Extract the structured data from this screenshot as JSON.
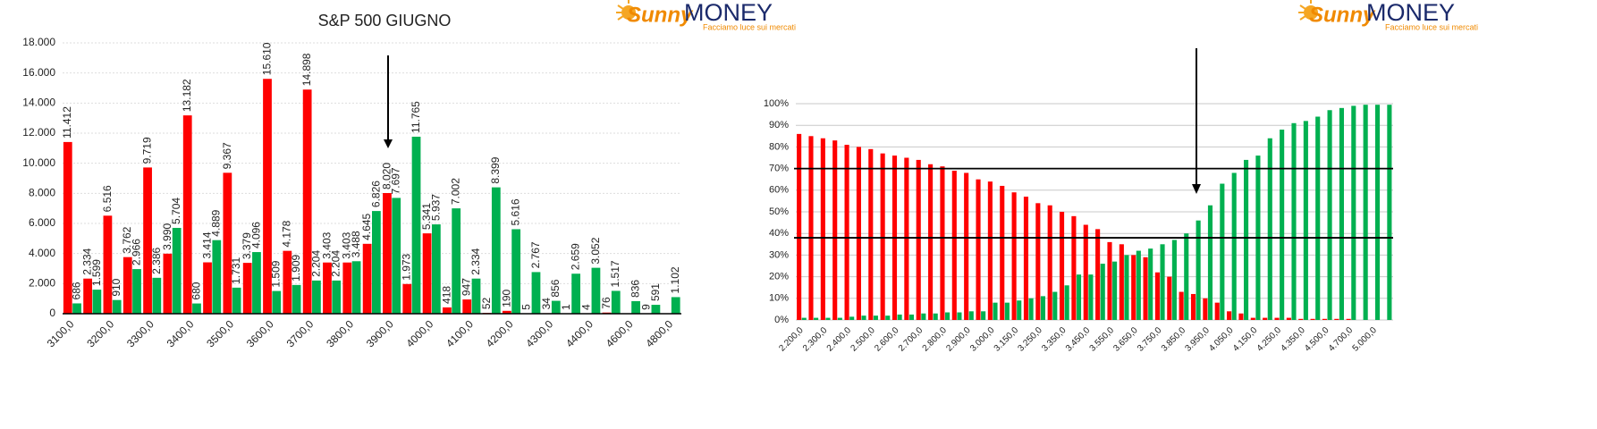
{
  "chart_data": [
    {
      "type": "bar",
      "title": "S&P 500 GIUGNO",
      "categories": [
        "3100,0",
        null,
        "3200,0",
        null,
        "3300,0",
        null,
        "3400,0",
        null,
        "3500,0",
        null,
        "3600,0",
        null,
        "3700,0",
        null,
        "3800,0",
        null,
        "3900,0",
        null,
        "4000,0",
        null,
        "4100,0",
        null,
        "4200,0",
        null,
        "4300,0",
        null,
        "4400,0",
        null,
        "4600,0",
        null,
        "4800,0"
      ],
      "series": [
        {
          "color": "#ff0000",
          "values": [
            11412,
            2334,
            6516,
            3762,
            9719,
            3990,
            13182,
            3414,
            9367,
            3379,
            15610,
            4178,
            14898,
            3403,
            3403,
            4645,
            8020,
            1973,
            5341,
            418,
            947,
            52,
            190,
            5,
            34,
            1,
            4,
            76,
            null,
            9,
            null
          ],
          "value_labels": [
            "11.412",
            "2.334",
            "6.516",
            "3.762",
            "9.719",
            "3.990",
            "13.182",
            "3.414",
            "9.367",
            "3.379",
            "15.610",
            "4.178",
            "14.898",
            "3.403",
            "3.403",
            "4.645",
            "8.020",
            "1.973",
            "5.341",
            "418",
            "947",
            "52",
            "190",
            "5",
            "34",
            "1",
            "4",
            "76",
            null,
            "9",
            null
          ]
        },
        {
          "color": "#00b050",
          "values": [
            686,
            1599,
            910,
            2966,
            2386,
            5704,
            680,
            4889,
            1731,
            4096,
            1509,
            1909,
            2204,
            2204,
            3488,
            6826,
            7697,
            11765,
            5937,
            7002,
            2334,
            8399,
            5616,
            2767,
            856,
            2659,
            3052,
            1517,
            836,
            591,
            1102
          ],
          "value_labels": [
            "686",
            "1.599",
            "910",
            "2.966",
            "2.386",
            "5.704",
            "680",
            "4.889",
            "1.731",
            "4.096",
            "1.509",
            "1.909",
            "2.204",
            "2.204",
            "3.488",
            "6.826",
            "7.697",
            "11.765",
            "5.937",
            "7.002",
            "2.334",
            "8.399",
            "5.616",
            "2.767",
            "856",
            "2.659",
            "3.052",
            "1.517",
            "836",
            "591",
            "1.102"
          ]
        }
      ],
      "ylim": [
        0,
        18000
      ],
      "yticks": [
        0,
        {
          "value": 2000,
          "label": "2.000"
        },
        {
          "value": 4000,
          "label": "4.000"
        },
        {
          "value": 6000,
          "label": "6.000"
        },
        {
          "value": 8000,
          "label": "8.000"
        },
        {
          "value": 10000,
          "label": "10.000"
        },
        {
          "value": 12000,
          "label": "12.000"
        },
        {
          "value": 14000,
          "label": "14.000"
        },
        {
          "value": 16000,
          "label": "16.000"
        },
        {
          "value": 18000,
          "label": "18.000"
        }
      ],
      "grid": true
    },
    {
      "type": "bar",
      "categories": [
        "2.200,0",
        null,
        "2.300,0",
        null,
        "2.400,0",
        null,
        "2.500,0",
        null,
        "2.600,0",
        null,
        "2.700,0",
        null,
        "2.800,0",
        null,
        "2.900,0",
        null,
        "3.000,0",
        null,
        "3.150,0",
        null,
        "3.250,0",
        null,
        "3.350,0",
        null,
        "3.450,0",
        null,
        "3.550,0",
        null,
        "3.650,0",
        null,
        "3.750,0",
        null,
        "3.850,0",
        null,
        "3.950,0",
        null,
        "4.050,0",
        null,
        "4.150,0",
        null,
        "4.250,0",
        null,
        "4.350,0",
        null,
        "4.500,0",
        null,
        "4.700,0",
        null,
        "5.000,0",
        null
      ],
      "series": [
        {
          "color": "#ff0000",
          "values": [
            86,
            85,
            84,
            83,
            81,
            80,
            79,
            77,
            76,
            75,
            74,
            72,
            71,
            69,
            68,
            65,
            64,
            62,
            59,
            57,
            54,
            53,
            50,
            48,
            44,
            42,
            36,
            35,
            30,
            29,
            22,
            20,
            13,
            12,
            10,
            8,
            4,
            3,
            1,
            1,
            1,
            1,
            0.5,
            0.5,
            0.5,
            0.5,
            0.5,
            0,
            0,
            0
          ]
        },
        {
          "color": "#00b050",
          "values": [
            1,
            1,
            1,
            1,
            1.5,
            2,
            2,
            2,
            2.5,
            2.5,
            3,
            3,
            3.5,
            3.5,
            4,
            4,
            8,
            8,
            9,
            10,
            11,
            13,
            16,
            21,
            21,
            26,
            27,
            30,
            32,
            33,
            35,
            37,
            40,
            46,
            53,
            63,
            68,
            74,
            76,
            84,
            88,
            91,
            92,
            94,
            97,
            98,
            99,
            99.5,
            99.5,
            99.5
          ]
        }
      ],
      "ylim": [
        0,
        100
      ],
      "yticks": [
        {
          "value": 0,
          "label": "0%"
        },
        {
          "value": 10,
          "label": "10%"
        },
        {
          "value": 20,
          "label": "20%"
        },
        {
          "value": 30,
          "label": "30%"
        },
        {
          "value": 40,
          "label": "40%"
        },
        {
          "value": 50,
          "label": "50%"
        },
        {
          "value": 60,
          "label": "60%"
        },
        {
          "value": 70,
          "label": "70%"
        },
        {
          "value": 80,
          "label": "80%"
        },
        {
          "value": 90,
          "label": "90%"
        },
        {
          "value": 100,
          "label": "100%"
        }
      ],
      "reference_lines": [
        70,
        38
      ],
      "grid": true
    }
  ],
  "logos": [
    {
      "brand": "Sunny",
      "word": "MONEY",
      "tagline": "Facciamo luce sui mercati"
    },
    {
      "brand": "Sunny",
      "word": "MONEY",
      "tagline": "Facciamo luce sui mercati"
    }
  ]
}
